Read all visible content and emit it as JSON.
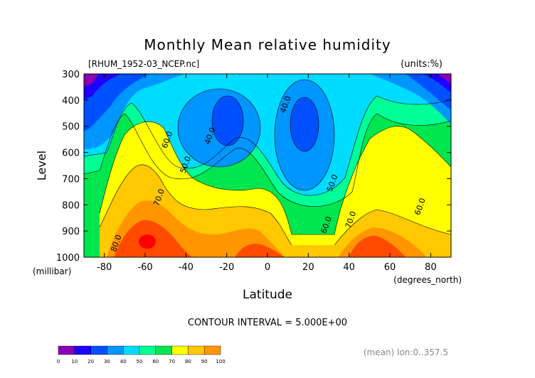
{
  "title": "Monthly Mean relative humidity",
  "file_label": "[RHUM_1952-03_NCEP.nc]",
  "units_label": "(units:%)",
  "contour_interval_text": "CONTOUR INTERVAL = 5.000E+00",
  "footer_text": "(mean) lon:0..357.5",
  "colors": {
    "levels": [
      "#8b00b4",
      "#1e00ff",
      "#0050ff",
      "#0096ff",
      "#00dcff",
      "#00ff96",
      "#00e650",
      "#ffff00",
      "#ffc800",
      "#ff9600",
      "#ff4b00",
      "#ff0000"
    ]
  },
  "chart_data": {
    "type": "contour",
    "title": "Monthly Mean relative humidity",
    "xlabel": "Latitude",
    "xunit": "(degrees_north)",
    "ylabel": "Level",
    "yunit": "(millibar)",
    "xlim": [
      -90,
      90
    ],
    "ylim": [
      1000,
      300
    ],
    "x_ticks": [
      -80,
      -60,
      -40,
      -20,
      0,
      20,
      40,
      60,
      80
    ],
    "x_tick_labels": [
      "-80",
      "-60",
      "-40",
      "-20",
      "0",
      "20",
      "40",
      "60",
      "80"
    ],
    "y_ticks": [
      300,
      400,
      500,
      600,
      700,
      800,
      900,
      1000
    ],
    "y_tick_labels": [
      "300",
      "400",
      "500",
      "600",
      "700",
      "800",
      "900",
      "1000"
    ],
    "contour_interval": 5,
    "colorbar_levels": [
      0,
      10,
      20,
      30,
      40,
      50,
      60,
      70,
      80,
      90,
      100
    ],
    "colorbar_tick_labels": [
      "0",
      "10",
      "20",
      "30",
      "40",
      "50",
      "60",
      "70",
      "80",
      "90",
      "100"
    ],
    "contour_labels": [
      {
        "text": "40.0",
        "lat": 10,
        "level": 420
      },
      {
        "text": "40.0",
        "lat": -27,
        "level": 540
      },
      {
        "text": "60.0",
        "lat": -48,
        "level": 555
      },
      {
        "text": "50.0",
        "lat": -39,
        "level": 650
      },
      {
        "text": "70.0",
        "lat": -52,
        "level": 775
      },
      {
        "text": "80.0",
        "lat": -73,
        "level": 950
      },
      {
        "text": "50.0",
        "lat": 33,
        "level": 720
      },
      {
        "text": "60.0",
        "lat": 30,
        "level": 880
      },
      {
        "text": "70.0",
        "lat": 42,
        "level": 860
      },
      {
        "text": "60.0",
        "lat": 76,
        "level": 810
      }
    ],
    "grid": false,
    "legend": "bottom-left colorbar"
  }
}
